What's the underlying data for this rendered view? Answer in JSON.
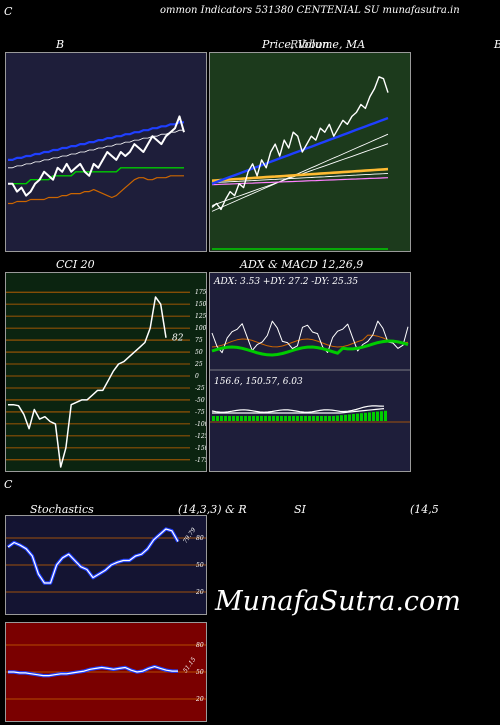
{
  "header": {
    "left_letter": "C",
    "text": "ommon  Indicators 531380  CENTENIAL SU munafasutra.in"
  },
  "titles": {
    "bb": "B",
    "price": "Price,  Volume,  MA",
    "price_overlay": "Ribbon",
    "right_edge": "B",
    "cci": "CCI 20",
    "adx_macd": "ADX  & MACD 12,26,9",
    "bottom_c": "C",
    "stoch_left": "Stochastics",
    "stoch_mid": "(14,3,3) & R",
    "stoch_si": "SI",
    "stoch_right": "(14,5"
  },
  "watermark": "MunafaSutra.com",
  "colors": {
    "bb_bg": "#1e1e3a",
    "price_bg": "#1c3a1c",
    "cci_bg": "#0b2410",
    "adx_bg": "#1e1e3a",
    "stoch_bg": "#141432",
    "rsi_bg": "#7a0000",
    "orange": "#cc6600",
    "blue": "#1f3fff",
    "green": "#00cc00"
  },
  "chart_data": [
    {
      "type": "line",
      "name": "bollinger",
      "x": [
        1,
        2,
        3,
        4,
        5,
        6,
        7,
        8,
        9,
        10,
        11,
        12,
        13,
        14,
        15,
        16,
        17,
        18,
        19,
        20,
        21,
        22,
        23,
        24,
        25,
        26,
        27,
        28,
        29,
        30,
        31,
        32,
        33,
        34,
        35,
        36,
        37,
        38,
        39,
        40
      ],
      "series": [
        {
          "values": [
            0.66,
            0.66,
            0.7,
            0.68,
            0.72,
            0.7,
            0.66,
            0.64,
            0.6,
            0.62,
            0.64,
            0.58,
            0.6,
            0.56,
            0.6,
            0.58,
            0.56,
            0.6,
            0.62,
            0.56,
            0.58,
            0.54,
            0.5,
            0.52,
            0.54,
            0.5,
            0.52,
            0.5,
            0.46,
            0.48,
            0.5,
            0.46,
            0.42,
            0.44,
            0.46,
            0.42,
            0.4,
            0.38,
            0.32,
            0.4
          ]
        },
        {
          "values": [
            0.54,
            0.54,
            0.53,
            0.53,
            0.52,
            0.52,
            0.51,
            0.51,
            0.5,
            0.5,
            0.49,
            0.49,
            0.48,
            0.48,
            0.47,
            0.47,
            0.46,
            0.46,
            0.45,
            0.45,
            0.44,
            0.44,
            0.43,
            0.43,
            0.42,
            0.42,
            0.41,
            0.41,
            0.4,
            0.4,
            0.39,
            0.39,
            0.38,
            0.38,
            0.37,
            0.37,
            0.36,
            0.36,
            0.35,
            0.35
          ]
        },
        {
          "values": [
            0.58,
            0.58,
            0.57,
            0.57,
            0.56,
            0.56,
            0.55,
            0.55,
            0.54,
            0.54,
            0.53,
            0.53,
            0.52,
            0.52,
            0.51,
            0.51,
            0.5,
            0.5,
            0.49,
            0.49,
            0.48,
            0.48,
            0.47,
            0.47,
            0.46,
            0.46,
            0.45,
            0.45,
            0.44,
            0.44,
            0.43,
            0.43,
            0.42,
            0.42,
            0.41,
            0.41,
            0.4,
            0.4,
            0.39,
            0.39
          ]
        },
        {
          "values": [
            0.66,
            0.66,
            0.66,
            0.66,
            0.66,
            0.64,
            0.64,
            0.64,
            0.64,
            0.64,
            0.62,
            0.62,
            0.62,
            0.62,
            0.62,
            0.6,
            0.6,
            0.6,
            0.6,
            0.6,
            0.6,
            0.6,
            0.6,
            0.6,
            0.6,
            0.58,
            0.58,
            0.58,
            0.58,
            0.58,
            0.58,
            0.58,
            0.58,
            0.58,
            0.58,
            0.58,
            0.58,
            0.58,
            0.58,
            0.58
          ]
        },
        {
          "values": [
            0.76,
            0.76,
            0.75,
            0.75,
            0.75,
            0.74,
            0.74,
            0.74,
            0.74,
            0.73,
            0.73,
            0.73,
            0.72,
            0.72,
            0.71,
            0.71,
            0.71,
            0.7,
            0.7,
            0.69,
            0.7,
            0.71,
            0.72,
            0.73,
            0.72,
            0.7,
            0.68,
            0.66,
            0.64,
            0.63,
            0.63,
            0.64,
            0.64,
            0.63,
            0.63,
            0.63,
            0.62,
            0.62,
            0.62,
            0.62
          ]
        }
      ]
    },
    {
      "type": "line",
      "name": "cci",
      "yticks": [
        "175",
        "150",
        "125",
        "100",
        "75",
        "50",
        "25",
        "0",
        "-25",
        "-50",
        "-75",
        "-100",
        "-125",
        "-150",
        "-175"
      ],
      "ylim": [
        -190,
        190
      ],
      "values": [
        -60,
        -60,
        -62,
        -80,
        -110,
        -70,
        -90,
        -85,
        -95,
        -100,
        -190,
        -150,
        -60,
        -55,
        -50,
        -50,
        -40,
        -30,
        -30,
        -10,
        10,
        25,
        30,
        40,
        50,
        60,
        70,
        100,
        165,
        150,
        80
      ],
      "last_label": "82"
    },
    {
      "type": "line",
      "name": "adx_macd",
      "adx_label": "ADX: 3.53  +DY: 27.2  -DY: 25.35",
      "macd_label": "156.6,  150.57,  6.03"
    },
    {
      "type": "line",
      "name": "stochastics",
      "yticks": [
        "80",
        "50",
        "20"
      ],
      "ylim": [
        0,
        100
      ],
      "values": [
        70,
        75,
        72,
        68,
        60,
        40,
        30,
        30,
        50,
        58,
        62,
        55,
        48,
        45,
        36,
        40,
        44,
        50,
        53,
        55,
        55,
        60,
        62,
        68,
        78,
        84,
        90,
        88,
        76
      ],
      "last_label": "79.79"
    },
    {
      "type": "line",
      "name": "rsi",
      "yticks": [
        "80",
        "50",
        "20"
      ],
      "ylim": [
        0,
        100
      ],
      "values": [
        50,
        50,
        49,
        49,
        48,
        47,
        46,
        46,
        47,
        48,
        48,
        49,
        50,
        51,
        53,
        54,
        55,
        54,
        53,
        54,
        55,
        52,
        50,
        51,
        54,
        56,
        54,
        52,
        51,
        51
      ],
      "last_label": "51.15"
    }
  ]
}
